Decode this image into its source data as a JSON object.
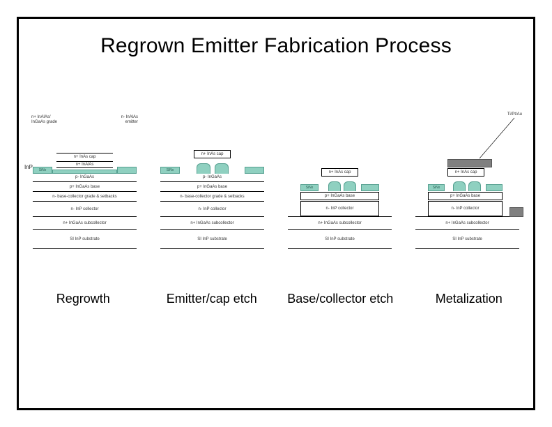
{
  "title": "Regrown Emitter Fabrication Process",
  "captions": [
    "Regrowth",
    "Emitter/cap etch",
    "Base/collector etch",
    "Metalization"
  ],
  "colors": {
    "teal": "#8fd0c0",
    "teal_border": "#55a090",
    "metal": "#808080",
    "line": "#000000",
    "bg": "#ffffff",
    "text": "#000000"
  },
  "common_layers": {
    "substrate": "SI InP substrate",
    "subcollector": "n+ InGaAs subcollector",
    "collector": "n- InP collector",
    "grade": "n- base-collector grade & setbacks",
    "base": "p+ InGaAs base",
    "pingaas": "p- InGaAs",
    "ninalas": "n+ InAlAs",
    "ninas": "n+ InAs cap",
    "sinx": "SiNx"
  },
  "panel1": {
    "topleft": "n+ InAlAs/\nInGaAs grade",
    "topright": "n- InAlAs\nemitter",
    "left_arrow": "InP →"
  },
  "panel4": {
    "metal_label": "Ti/Pt/Au"
  },
  "fonts": {
    "title_pt": 30,
    "caption_pt": 18,
    "layer_pt": 6,
    "small_pt": 5
  }
}
